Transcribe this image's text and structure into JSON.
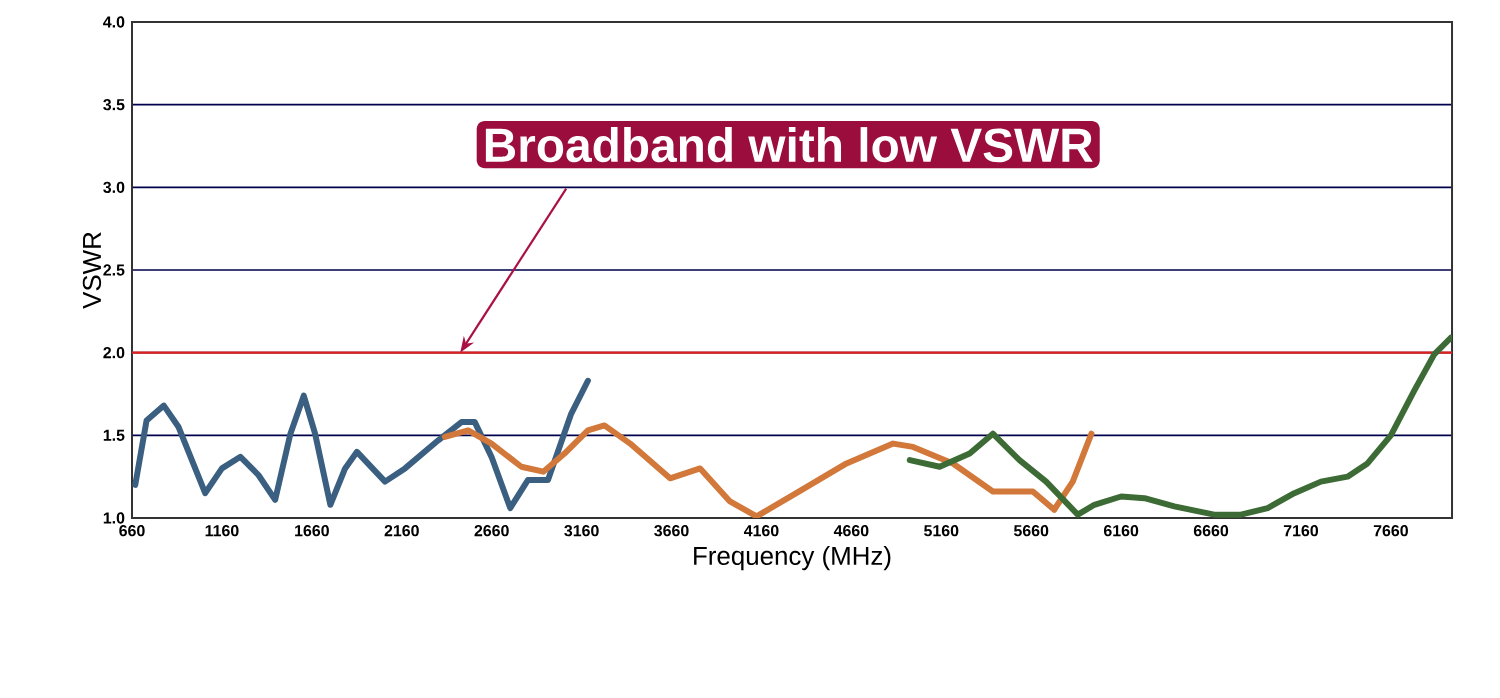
{
  "chart_data": {
    "type": "line",
    "xlabel": "Frequency (MHz)",
    "ylabel": "VSWR",
    "xlim": [
      660,
      8000
    ],
    "xticks": [
      660,
      1160,
      1660,
      2160,
      2660,
      3160,
      3660,
      4160,
      4660,
      5160,
      5660,
      6160,
      6660,
      7160,
      7660
    ],
    "ylim": [
      1,
      4
    ],
    "yticks": [
      {
        "value": 1,
        "label": "1.0"
      },
      {
        "value": 1.5,
        "label": "1.5"
      },
      {
        "value": 2,
        "label": "2.0"
      },
      {
        "value": 2.5,
        "label": "2.5"
      },
      {
        "value": 3,
        "label": "3.0"
      },
      {
        "value": 3.5,
        "label": "3.5"
      },
      {
        "value": 4,
        "label": "4.0"
      }
    ],
    "grid": "y",
    "ref_lines": [
      {
        "axis": "y",
        "value": 2,
        "color": "#e0201e"
      }
    ],
    "annotations": [
      {
        "text": "Broadband with low VSWR",
        "x": 2485,
        "y": 2
      }
    ],
    "series": [
      {
        "color": "#3b5f80",
        "x": [
          678,
          741,
          837,
          919,
          1067,
          1160,
          1263,
          1363,
          1456,
          1541,
          1615,
          1678,
          1763,
          1845,
          1911,
          2067,
          2178,
          2363,
          2492,
          2566,
          2659,
          2763,
          2862,
          2973,
          3102,
          3195
        ],
        "values": [
          1.2,
          1.59,
          1.68,
          1.55,
          1.15,
          1.3,
          1.37,
          1.26,
          1.11,
          1.51,
          1.74,
          1.51,
          1.08,
          1.3,
          1.4,
          1.22,
          1.3,
          1.47,
          1.58,
          1.58,
          1.37,
          1.06,
          1.23,
          1.23,
          1.63,
          1.83
        ]
      },
      {
        "color": "#d2783a",
        "x": [
          2400,
          2529,
          2659,
          2825,
          2947,
          3065,
          3195,
          3287,
          3430,
          3652,
          3819,
          3985,
          4133,
          4337,
          4633,
          4892,
          5003,
          5225,
          5447,
          5669,
          5788,
          5891,
          5995
        ],
        "values": [
          1.49,
          1.53,
          1.45,
          1.31,
          1.28,
          1.39,
          1.53,
          1.56,
          1.45,
          1.24,
          1.3,
          1.1,
          1.01,
          1.14,
          1.33,
          1.45,
          1.43,
          1.33,
          1.16,
          1.16,
          1.05,
          1.22,
          1.51
        ]
      },
      {
        "color": "#3d6b35",
        "x": [
          4985,
          5151,
          5318,
          5447,
          5595,
          5743,
          5919,
          6011,
          6160,
          6290,
          6456,
          6678,
          6826,
          6975,
          7123,
          7271,
          7419,
          7530,
          7660,
          7790,
          7901,
          7993
        ],
        "values": [
          1.35,
          1.31,
          1.39,
          1.51,
          1.35,
          1.22,
          1.02,
          1.08,
          1.13,
          1.12,
          1.07,
          1.02,
          1.02,
          1.06,
          1.15,
          1.22,
          1.25,
          1.33,
          1.5,
          1.77,
          1.99,
          2.09
        ]
      }
    ]
  }
}
